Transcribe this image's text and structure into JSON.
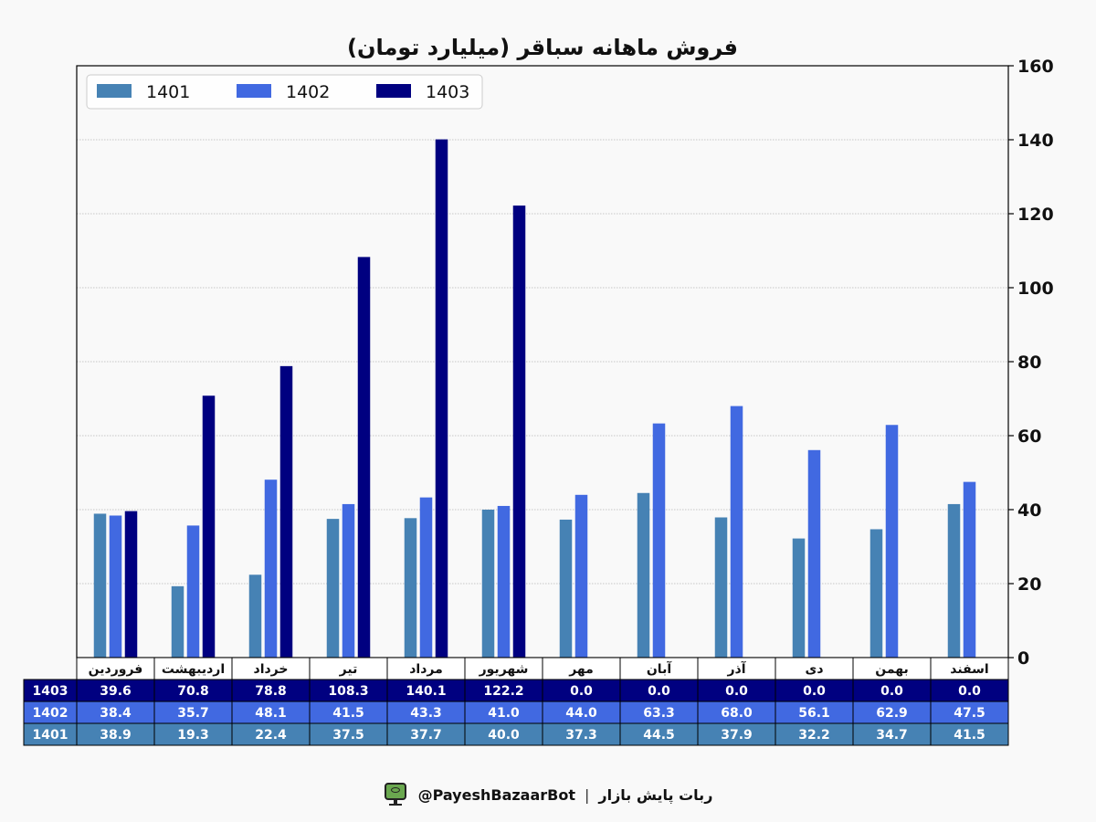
{
  "chart_data": {
    "type": "bar",
    "title": "فروش ماهانه سباقر (میلیارد تومان)",
    "categories": [
      "فروردین",
      "اردیبهشت",
      "خرداد",
      "تیر",
      "مرداد",
      "شهریور",
      "مهر",
      "آبان",
      "آذر",
      "دی",
      "بهمن",
      "اسفند"
    ],
    "series": [
      {
        "name": "1401",
        "color": "#4682b4",
        "values": [
          38.9,
          19.3,
          22.4,
          37.5,
          37.7,
          40.0,
          37.3,
          44.5,
          37.9,
          32.2,
          34.7,
          41.5
        ]
      },
      {
        "name": "1402",
        "color": "#4169e1",
        "values": [
          38.4,
          35.7,
          48.1,
          41.5,
          43.3,
          41.0,
          44.0,
          63.3,
          68.0,
          56.1,
          62.9,
          47.5
        ]
      },
      {
        "name": "1403",
        "color": "#000080",
        "values": [
          39.6,
          70.8,
          78.8,
          108.3,
          140.1,
          122.2,
          0.0,
          0.0,
          0.0,
          0.0,
          0.0,
          0.0
        ]
      }
    ],
    "table_rows": [
      {
        "label": "1403",
        "cells": [
          "39.6",
          "70.8",
          "78.8",
          "108.3",
          "140.1",
          "122.2",
          "0.0",
          "0.0",
          "0.0",
          "0.0",
          "0.0",
          "0.0"
        ]
      },
      {
        "label": "1402",
        "cells": [
          "38.4",
          "35.7",
          "48.1",
          "41.5",
          "43.3",
          "41.0",
          "44.0",
          "63.3",
          "68.0",
          "56.1",
          "62.9",
          "47.5"
        ]
      },
      {
        "label": "1401",
        "cells": [
          "38.9",
          "19.3",
          "22.4",
          "37.5",
          "37.7",
          "40.0",
          "37.3",
          "44.5",
          "37.9",
          "32.2",
          "34.7",
          "41.5"
        ]
      }
    ],
    "ylim": [
      0,
      160
    ],
    "yticks": [
      0,
      20,
      40,
      60,
      80,
      100,
      120,
      140,
      160
    ],
    "yaxis_side": "right",
    "grid": true,
    "legend_placement": "top-left"
  },
  "footer": {
    "handle": "@PayeshBazaarBot",
    "separator": "|",
    "bot_name": "ربات پایش بازار",
    "icon": "monitor-eye-icon"
  }
}
